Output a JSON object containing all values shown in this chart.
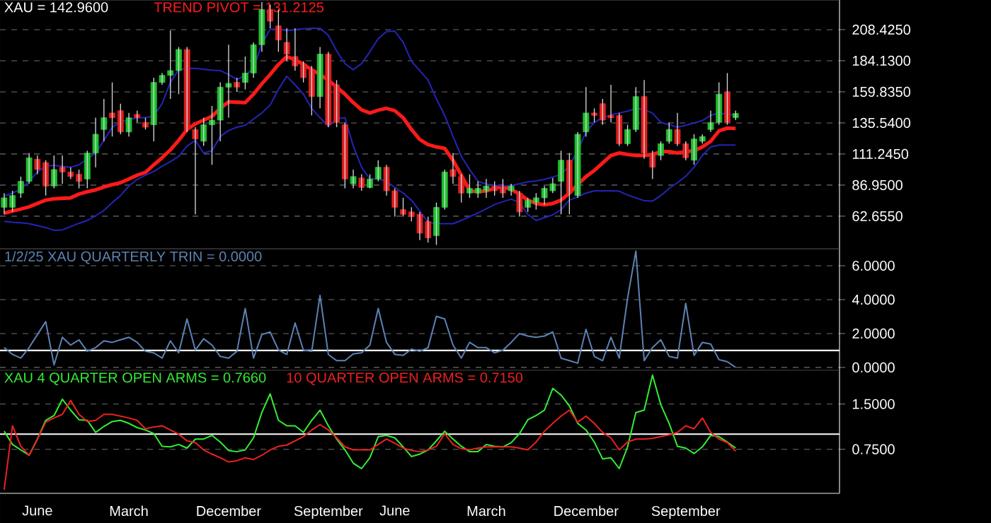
{
  "chart_data": [
    {
      "type": "candlestick",
      "title": "XAU = 142.9600",
      "categories": [
        null,
        null,
        null,
        null,
        null,
        null,
        null,
        null,
        null,
        null,
        null,
        null,
        null,
        null,
        null,
        null,
        null,
        null,
        null,
        null,
        null,
        null,
        null,
        null,
        null,
        null,
        null,
        null,
        null,
        null,
        null,
        null,
        null,
        null,
        null,
        null,
        null,
        null,
        null,
        null,
        null,
        null,
        null,
        null,
        null,
        null,
        null,
        null,
        null,
        null,
        null,
        null,
        null,
        null,
        null,
        null,
        null,
        null,
        null,
        null,
        null,
        null,
        null,
        null,
        null,
        null,
        null,
        null,
        null,
        null,
        null,
        null,
        null,
        null,
        null,
        null,
        null,
        null,
        null,
        null,
        null,
        null,
        null,
        null,
        null,
        null,
        null,
        null,
        null
      ],
      "ohlc": [
        [
          69.6,
          80.7,
          64.1,
          77.0
        ],
        [
          69.6,
          82.5,
          66.0,
          78.8
        ],
        [
          80.7,
          93.6,
          77.0,
          89.9
        ],
        [
          89.9,
          112.0,
          88.0,
          108.3
        ],
        [
          107.2,
          110.1,
          95.4,
          99.1
        ],
        [
          104.6,
          106.4,
          78.8,
          86.2
        ],
        [
          86.2,
          110.1,
          84.4,
          99.1
        ],
        [
          100.9,
          110.1,
          88.0,
          97.2
        ],
        [
          97.2,
          100.9,
          91.7,
          93.6
        ],
        [
          95.4,
          99.1,
          84.4,
          89.9
        ],
        [
          91.7,
          113.8,
          84.4,
          112.0
        ],
        [
          112.0,
          139.6,
          100.9,
          126.7
        ],
        [
          130.4,
          154.3,
          121.2,
          139.6
        ],
        [
          143.3,
          167.2,
          124.9,
          139.6
        ],
        [
          145.1,
          150.6,
          126.7,
          128.5
        ],
        [
          128.5,
          143.3,
          124.9,
          139.6
        ],
        [
          142.2,
          145.1,
          135.9,
          139.6
        ],
        [
          135.9,
          139.6,
          130.4,
          132.2
        ],
        [
          134.1,
          170.9,
          121.2,
          167.2
        ],
        [
          167.2,
          174.5,
          165.3,
          172.7
        ],
        [
          172.7,
          207.7,
          154.3,
          176.4
        ],
        [
          176.4,
          194.8,
          158.0,
          192.9
        ],
        [
          192.9,
          194.8,
          128.5,
          130.4
        ],
        [
          130.4,
          132.2,
          64.1,
          123.0
        ],
        [
          121.2,
          139.6,
          117.5,
          134.1
        ],
        [
          134.1,
          148.8,
          102.8,
          137.7
        ],
        [
          137.7,
          167.2,
          121.2,
          163.5
        ],
        [
          163.5,
          196.6,
          139.6,
          166.4
        ],
        [
          167.2,
          170.9,
          159.8,
          163.5
        ],
        [
          167.2,
          187.4,
          161.7,
          174.5
        ],
        [
          174.5,
          198.5,
          170.9,
          196.6
        ],
        [
          196.6,
          230.0,
          191.1,
          224.2
        ],
        [
          224.2,
          228.0,
          209.5,
          215.0
        ],
        [
          211.4,
          224.2,
          191.1,
          200.3
        ],
        [
          198.5,
          209.5,
          183.7,
          189.3
        ],
        [
          187.4,
          209.5,
          176.4,
          180.1
        ],
        [
          181.9,
          183.7,
          167.2,
          170.9
        ],
        [
          176.4,
          180.1,
          141.4,
          156.1
        ],
        [
          156.1,
          194.8,
          146.9,
          189.3
        ],
        [
          189.3,
          191.1,
          132.2,
          134.1
        ],
        [
          165.3,
          169.0,
          132.2,
          135.9
        ],
        [
          134.1,
          135.9,
          84.4,
          91.7
        ],
        [
          88.0,
          99.1,
          84.4,
          93.6
        ],
        [
          92.5,
          95.4,
          82.5,
          85.1
        ],
        [
          85.1,
          95.4,
          84.4,
          91.7
        ],
        [
          91.7,
          106.4,
          89.9,
          100.9
        ],
        [
          100.9,
          102.8,
          78.8,
          82.5
        ],
        [
          82.5,
          84.4,
          62.3,
          69.6
        ],
        [
          67.8,
          77.0,
          62.3,
          64.1
        ],
        [
          66.0,
          69.6,
          58.6,
          62.3
        ],
        [
          64.1,
          66.0,
          43.9,
          49.4
        ],
        [
          58.6,
          62.3,
          42.0,
          45.7
        ],
        [
          47.5,
          73.3,
          40.2,
          69.6
        ],
        [
          69.6,
          99.1,
          67.8,
          97.2
        ],
        [
          99.1,
          112.0,
          88.0,
          93.6
        ],
        [
          93.6,
          95.4,
          73.3,
          80.7
        ],
        [
          80.7,
          95.4,
          77.0,
          84.4
        ],
        [
          80.7,
          89.9,
          77.0,
          84.4
        ],
        [
          82.5,
          91.7,
          77.0,
          86.2
        ],
        [
          86.2,
          89.9,
          78.8,
          82.5
        ],
        [
          84.4,
          91.7,
          77.0,
          80.7
        ],
        [
          82.5,
          88.0,
          78.8,
          86.2
        ],
        [
          80.7,
          82.5,
          62.3,
          66.0
        ],
        [
          69.6,
          77.0,
          66.0,
          75.2
        ],
        [
          73.3,
          80.7,
          67.8,
          77.0
        ],
        [
          77.0,
          86.2,
          71.5,
          84.4
        ],
        [
          82.5,
          92.5,
          80.7,
          88.0
        ],
        [
          89.9,
          113.8,
          64.1,
          106.4
        ],
        [
          106.4,
          112.0,
          64.1,
          80.7
        ],
        [
          78.8,
          128.5,
          77.0,
          126.7
        ],
        [
          128.5,
          163.5,
          124.9,
          143.3
        ],
        [
          143.3,
          146.9,
          135.9,
          141.4
        ],
        [
          150.6,
          154.3,
          134.1,
          137.7
        ],
        [
          141.4,
          165.3,
          135.9,
          139.6
        ],
        [
          141.4,
          143.3,
          117.5,
          119.3
        ],
        [
          119.3,
          134.1,
          117.5,
          130.4
        ],
        [
          130.4,
          163.5,
          128.5,
          156.1
        ],
        [
          156.1,
          169.0,
          107.5,
          112.0
        ],
        [
          112.0,
          113.8,
          91.7,
          100.9
        ],
        [
          110.1,
          121.2,
          106.4,
          119.3
        ],
        [
          121.2,
          135.9,
          119.3,
          130.4
        ],
        [
          130.4,
          143.3,
          117.5,
          119.3
        ],
        [
          119.3,
          121.2,
          106.4,
          108.3
        ],
        [
          106.4,
          126.7,
          102.8,
          123.0
        ],
        [
          121.2,
          126.7,
          119.3,
          124.9
        ],
        [
          130.4,
          145.1,
          128.5,
          135.9
        ],
        [
          135.9,
          167.2,
          134.1,
          158.0
        ],
        [
          159.8,
          174.5,
          134.1,
          135.9
        ],
        [
          139.6,
          145.1,
          137.7,
          142.96
        ]
      ],
      "colors": [
        "#20c030",
        "#20c030",
        "#20c030",
        "#20c030",
        "#e02020",
        "#e02020",
        "#20c030",
        "#e02020",
        "#e02020",
        "#e02020",
        "#20c030",
        "#20c030",
        "#20c030",
        "#e02020",
        "#e02020",
        "#20c030",
        "#e02020",
        "#e02020",
        "#20c030",
        "#20c030",
        "#20c030",
        "#20c030",
        "#e02020",
        "#e02020",
        "#20c030",
        "#20c030",
        "#20c030",
        "#20c030",
        "#e02020",
        "#20c030",
        "#20c030",
        "#20c030",
        "#e02020",
        "#e02020",
        "#e02020",
        "#e02020",
        "#e02020",
        "#e02020",
        "#20c030",
        "#e02020",
        "#e02020",
        "#e02020",
        "#20c030",
        "#e02020",
        "#20c030",
        "#20c030",
        "#e02020",
        "#e02020",
        "#e02020",
        "#e02020",
        "#e02020",
        "#e02020",
        "#20c030",
        "#20c030",
        "#e02020",
        "#e02020",
        "#20c030",
        "#20c030",
        "#20c030",
        "#e02020",
        "#e02020",
        "#20c030",
        "#e02020",
        "#20c030",
        "#20c030",
        "#20c030",
        "#20c030",
        "#20c030",
        "#e02020",
        "#20c030",
        "#20c030",
        "#e02020",
        "#e02020",
        "#e02020",
        "#e02020",
        "#20c030",
        "#20c030",
        "#e02020",
        "#e02020",
        "#20c030",
        "#20c030",
        "#e02020",
        "#e02020",
        "#20c030",
        "#20c030",
        "#20c030",
        "#20c030",
        "#e02020",
        "#20c030"
      ],
      "series": [
        {
          "name": "TREND PIVOT = 131.2125",
          "color": "#ff1a1a",
          "type": "line",
          "values": [
            64.9,
            66.7,
            68.2,
            70.0,
            72.6,
            75.2,
            76.3,
            76.6,
            77.0,
            79.9,
            81.8,
            83.2,
            85.5,
            87.3,
            88.8,
            91.7,
            94.7,
            96.9,
            102.8,
            108.3,
            114.5,
            121.9,
            130.4,
            134.8,
            137.7,
            140.7,
            146.9,
            152.1,
            151.7,
            151.4,
            158.0,
            166.1,
            173.4,
            181.2,
            187.4,
            184.9,
            181.2,
            177.1,
            173.4,
            169.0,
            163.5,
            158.0,
            151.4,
            145.8,
            143.3,
            145.5,
            146.9,
            145.1,
            139.6,
            130.4,
            122.6,
            118.6,
            116.8,
            115.6,
            106.4,
            94.7,
            82.5,
            81.8,
            82.5,
            84.4,
            85.8,
            83.6,
            79.9,
            75.2,
            72.6,
            71.5,
            72.6,
            75.2,
            80.7,
            87.3,
            93.6,
            98.4,
            104.2,
            110.1,
            112.0,
            110.9,
            110.1,
            110.1,
            110.9,
            113.1,
            113.1,
            112.0,
            113.1,
            113.8,
            116.8,
            121.2,
            129.3,
            131.5,
            131.2
          ]
        },
        {
          "color": "#2424b8",
          "type": "line",
          "values": [
            78.5,
            80.7,
            83.6,
            89.9,
            97.2,
            102.0,
            102.4,
            101.7,
            100.9,
            102.8,
            107.2,
            112.0,
            121.9,
            132.2,
            136.3,
            138.1,
            139.6,
            139.6,
            141.0,
            150.6,
            167.2,
            177.1,
            178.2,
            178.2,
            177.5,
            176.8,
            176.4,
            173.4,
            169.4,
            172.7,
            178.2,
            197.4,
            208.8,
            208.8,
            207.7,
            208.4,
            209.1,
            209.5,
            209.5,
            204.0,
            191.8,
            181.9,
            177.1,
            181.9,
            191.1,
            201.4,
            206.9,
            207.3,
            198.5,
            183.7,
            176.4,
            169.0,
            154.3,
            141.4,
            124.9,
            109.4,
            99.1,
            89.9,
            87.7,
            86.9,
            86.2,
            86.6,
            88.0,
            89.5,
            90.2,
            91.4,
            93.2,
            95.4,
            102.0,
            113.8,
            128.5,
            135.9,
            139.6,
            141.8,
            143.3,
            144.7,
            146.9,
            145.8,
            143.3,
            135.9,
            134.1,
            132.2,
            133.7,
            135.5,
            137.4,
            141.4,
            143.3,
            142.2,
            141.4
          ]
        },
        {
          "color": "#2424b8",
          "type": "line",
          "values": [
            58.6,
            57.9,
            57.5,
            56.8,
            55.3,
            53.8,
            51.6,
            52.0,
            54.5,
            57.1,
            59.3,
            63.0,
            67.1,
            73.3,
            78.8,
            86.2,
            91.4,
            94.7,
            97.6,
            101.7,
            105.3,
            109.4,
            117.5,
            121.9,
            112.0,
            113.8,
            124.9,
            129.6,
            132.2,
            133.7,
            138.5,
            143.3,
            149.5,
            161.7,
            172.0,
            165.3,
            158.0,
            146.9,
            139.6,
            132.9,
            138.8,
            139.6,
            117.5,
            100.9,
            91.7,
            91.7,
            89.9,
            85.1,
            80.7,
            75.2,
            66.7,
            57.9,
            56.8,
            56.8,
            56.8,
            59.3,
            62.3,
            65.2,
            68.5,
            71.8,
            74.0,
            75.9,
            73.3,
            64.1,
            59.3,
            61.5,
            63.7,
            67.8,
            75.2,
            77.7,
            80.7,
            82.5,
            82.5,
            82.5,
            82.2,
            79.2,
            77.0,
            74.8,
            74.4,
            78.8,
            84.4,
            88.8,
            93.9,
            100.9,
            110.1,
            116.8,
            118.2,
            118.2,
            118.2
          ]
        }
      ],
      "ylim": [
        37.2,
        231.6
      ],
      "yticks": [
        {
          "value": 62.655,
          "label": "62.6550"
        },
        {
          "value": 86.95,
          "label": "86.9500"
        },
        {
          "value": 111.245,
          "label": "111.2450"
        },
        {
          "value": 135.54,
          "label": "135.5400"
        },
        {
          "value": 159.835,
          "label": "159.8350"
        },
        {
          "value": 184.13,
          "label": "184.1300"
        },
        {
          "value": 208.425,
          "label": "208.4250"
        }
      ],
      "grid": "y",
      "legend": "top left",
      "tick_labels": "y"
    },
    {
      "type": "line",
      "categories": [
        null,
        null,
        null,
        null,
        null,
        null,
        null,
        null,
        null,
        null,
        null,
        null,
        null,
        null,
        null,
        null,
        null,
        null,
        null,
        null,
        null,
        null,
        null,
        null,
        null,
        null,
        null,
        null,
        null,
        null,
        null,
        null,
        null,
        null,
        null,
        null,
        null,
        null,
        null,
        null,
        null,
        null,
        null,
        null,
        null,
        null,
        null,
        null,
        null,
        null,
        null,
        null,
        null,
        null,
        null,
        null,
        null,
        null,
        null,
        null,
        null,
        null,
        null,
        null,
        null,
        null,
        null,
        null,
        null,
        null,
        null,
        null,
        null,
        null,
        null,
        null,
        null,
        null,
        null,
        null,
        null,
        null,
        null,
        null,
        null,
        null,
        null,
        null,
        null
      ],
      "series": [
        {
          "name": "1/2/25 XAU QUARTERLY TRIN = 0.0000",
          "color": "#5d82b4",
          "values": [
            1.17,
            0.77,
            0.55,
            1.17,
            1.94,
            2.7,
            0.15,
            1.78,
            1.32,
            1.63,
            0.95,
            1.17,
            1.57,
            1.48,
            1.63,
            1.78,
            1.48,
            0.95,
            0.86,
            0.55,
            1.57,
            0.86,
            2.86,
            1.02,
            1.69,
            1.32,
            0.65,
            0.55,
            0.95,
            3.48,
            0.55,
            1.94,
            2.09,
            1.02,
            0.77,
            2.62,
            1.02,
            0.95,
            4.25,
            0.77,
            0.4,
            0.4,
            0.8,
            0.86,
            1.32,
            3.48,
            1.48,
            0.77,
            0.71,
            1.08,
            0.95,
            1.17,
            3.02,
            2.86,
            1.32,
            0.55,
            1.48,
            1.17,
            1.17,
            0.86,
            1.02,
            1.48,
            2.0,
            1.85,
            1.78,
            1.85,
            2.09,
            0.55,
            0.4,
            0.25,
            2.25,
            0.65,
            0.4,
            1.78,
            0.55,
            4.09,
            6.86,
            0.4,
            1.17,
            1.63,
            0.65,
            0.55,
            3.78,
            0.71,
            1.48,
            1.38,
            0.46,
            0.34,
            0.0
          ]
        }
      ],
      "ylim": [
        -0.17,
        7.0
      ],
      "yticks": [
        {
          "value": 0,
          "label": "0.0000"
        },
        {
          "value": 2,
          "label": "2.0000"
        },
        {
          "value": 4,
          "label": "4.0000"
        },
        {
          "value": 6,
          "label": "6.0000"
        }
      ],
      "grid": "y",
      "ref_lines": [
        {
          "axis": "y",
          "value": 1,
          "color": "#ffffff"
        }
      ],
      "legend": "top left",
      "tick_labels": "y"
    },
    {
      "type": "line",
      "categories": [
        null,
        null,
        null,
        null,
        "June",
        null,
        null,
        null,
        null,
        null,
        null,
        null,
        null,
        null,
        null,
        "March",
        null,
        null,
        null,
        null,
        null,
        null,
        null,
        null,
        null,
        null,
        null,
        "December",
        null,
        null,
        null,
        null,
        null,
        null,
        null,
        null,
        null,
        null,
        null,
        "September",
        null,
        null,
        null,
        null,
        null,
        null,
        null,
        "June",
        null,
        null,
        null,
        null,
        null,
        null,
        null,
        null,
        null,
        null,
        "March",
        null,
        null,
        null,
        null,
        null,
        null,
        null,
        null,
        null,
        null,
        null,
        "December",
        null,
        null,
        null,
        null,
        null,
        null,
        null,
        null,
        null,
        null,
        null,
        "September",
        null,
        null,
        null,
        null,
        null,
        null
      ],
      "series": [
        {
          "name": "XAU 4 QUARTER OPEN ARMS = 0.7660",
          "color": "#33ee33",
          "values": [
            1.05,
            0.83,
            0.74,
            0.65,
            0.92,
            1.23,
            1.31,
            1.58,
            1.4,
            1.24,
            1.23,
            1.03,
            1.13,
            1.21,
            1.23,
            1.18,
            1.11,
            1.07,
            1.01,
            0.8,
            0.79,
            0.83,
            0.77,
            0.92,
            0.92,
            0.98,
            0.87,
            0.73,
            0.71,
            0.74,
            0.94,
            1.36,
            1.67,
            1.23,
            1.14,
            1.14,
            1.03,
            1.23,
            1.4,
            1.14,
            0.92,
            0.74,
            0.52,
            0.43,
            0.61,
            0.96,
            0.98,
            0.94,
            0.79,
            0.63,
            0.67,
            0.74,
            0.89,
            1.05,
            0.92,
            0.8,
            0.71,
            0.71,
            0.83,
            0.8,
            0.79,
            0.86,
            1.01,
            1.24,
            1.31,
            1.4,
            1.76,
            1.65,
            1.47,
            1.18,
            1.07,
            0.87,
            0.59,
            0.61,
            0.43,
            0.79,
            1.36,
            1.4,
            1.98,
            1.49,
            1.18,
            0.8,
            0.77,
            0.68,
            0.79,
            0.98,
            0.96,
            0.87,
            0.77
          ]
        },
        {
          "name": "10 QUARTER OPEN ARMS = 0.7150",
          "color": "#ee2020",
          "values": [
            0.08,
            1.14,
            0.8,
            0.65,
            0.92,
            1.2,
            1.27,
            1.33,
            1.56,
            1.33,
            1.21,
            1.23,
            1.33,
            1.33,
            1.3,
            1.27,
            1.23,
            1.09,
            1.12,
            1.14,
            1.07,
            1.0,
            0.89,
            0.86,
            0.74,
            0.67,
            0.61,
            0.54,
            0.56,
            0.61,
            0.58,
            0.65,
            0.74,
            0.8,
            0.82,
            0.89,
            0.96,
            1.07,
            1.16,
            1.07,
            0.94,
            0.79,
            0.74,
            0.74,
            0.74,
            0.83,
            0.92,
            0.85,
            0.77,
            0.73,
            0.71,
            0.74,
            0.8,
            1.01,
            0.83,
            0.76,
            0.74,
            0.77,
            0.79,
            0.79,
            0.79,
            0.79,
            0.77,
            0.74,
            0.87,
            1.05,
            1.18,
            1.3,
            1.4,
            1.2,
            1.3,
            1.18,
            1.03,
            0.94,
            0.74,
            0.87,
            0.92,
            0.92,
            0.93,
            0.96,
            0.99,
            1.03,
            1.14,
            1.09,
            1.27,
            1.03,
            0.92,
            0.86,
            0.72
          ]
        }
      ],
      "ylim": [
        0.02,
        2.06
      ],
      "yticks": [
        {
          "value": 0.75,
          "label": "0.7500"
        },
        {
          "value": 1.5,
          "label": "1.5000"
        }
      ],
      "grid": "y",
      "ref_lines": [
        {
          "axis": "y",
          "value": 1,
          "color": "#ffffff"
        }
      ],
      "legend": "top left"
    }
  ]
}
